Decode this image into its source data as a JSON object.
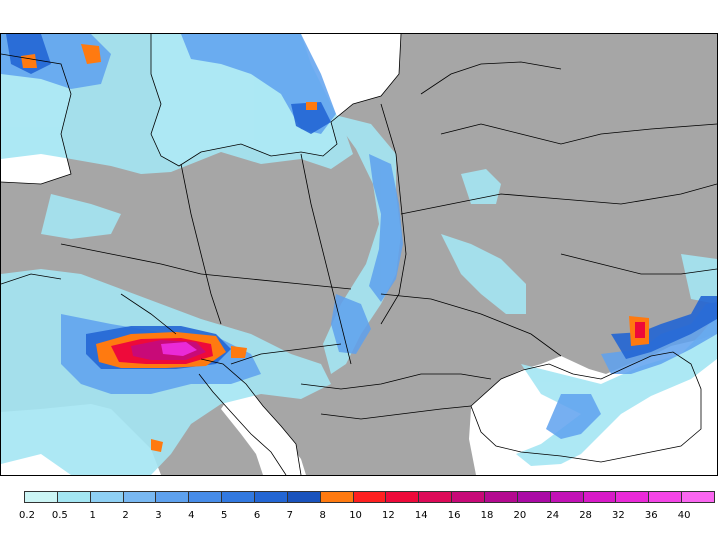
{
  "map": {
    "colors": {
      "land": "#a6a6a6",
      "sea": "#ffffff",
      "border": "#000000"
    }
  },
  "legend": {
    "bins": [
      {
        "label": "0.2",
        "color": "#ccf5f5"
      },
      {
        "label": "0.5",
        "color": "#a4e6f3"
      },
      {
        "label": "1",
        "color": "#8fd0f4"
      },
      {
        "label": "2",
        "color": "#79b8f2"
      },
      {
        "label": "3",
        "color": "#5ea1ee"
      },
      {
        "label": "4",
        "color": "#478ce8"
      },
      {
        "label": "5",
        "color": "#3279e0"
      },
      {
        "label": "6",
        "color": "#2366d4"
      },
      {
        "label": "7",
        "color": "#1a53bd"
      },
      {
        "label": "8",
        "color": "#ff7a10"
      },
      {
        "label": "10",
        "color": "#ff2020"
      },
      {
        "label": "12",
        "color": "#ee0a3a"
      },
      {
        "label": "14",
        "color": "#dd0a58"
      },
      {
        "label": "16",
        "color": "#c80a78"
      },
      {
        "label": "18",
        "color": "#b40a90"
      },
      {
        "label": "20",
        "color": "#aa0aa5"
      },
      {
        "label": "24",
        "color": "#c212b6"
      },
      {
        "label": "28",
        "color": "#d81ac8"
      },
      {
        "label": "32",
        "color": "#ea2ad8"
      },
      {
        "label": "36",
        "color": "#f445e6"
      },
      {
        "label": "40",
        "color": "#fa66f0"
      }
    ]
  }
}
